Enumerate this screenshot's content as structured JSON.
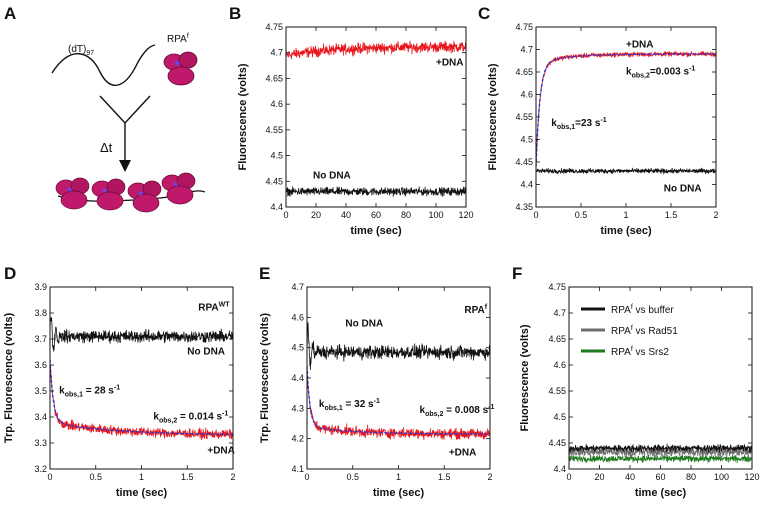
{
  "figure": {
    "colors": {
      "red": "#e8151b",
      "black": "#111111",
      "blue": "#2b3bd6",
      "gray": "#6e6e6e",
      "green": "#1e7a1e",
      "magenta": "#c0186a",
      "star": "#5a4cff"
    }
  },
  "schematic": {
    "letter": "A",
    "dt_label": "(dT)",
    "dt_sub": "97",
    "rpa_label": "RPA",
    "rpa_sup": "f",
    "delta_t": "Δt"
  },
  "chart_data": [
    {
      "id": "B",
      "letter": "B",
      "type": "line",
      "xlabel": "time (sec)",
      "ylabel": "Fluorescence (volts)",
      "xlim": [
        0,
        120
      ],
      "ylim": [
        4.4,
        4.75
      ],
      "xticks": [
        0,
        20,
        40,
        60,
        80,
        100,
        120
      ],
      "xtick_labels": [
        "0",
        "20",
        "40",
        "60",
        "80",
        "100",
        "120"
      ],
      "yticks": [
        4.4,
        4.45,
        4.5,
        4.55,
        4.6,
        4.65,
        4.7,
        4.75
      ],
      "ytick_labels": [
        "4.4",
        "4.45",
        "4.5",
        "4.55",
        "4.6",
        "4.65",
        "4.7",
        "4.75"
      ],
      "series": [
        {
          "name": "+DNA",
          "kind": "rise",
          "start": 4.695,
          "end": 4.712,
          "k": 0.03,
          "noise": 0.008,
          "color": "#e8151b"
        },
        {
          "name": "No DNA",
          "kind": "flat",
          "start": 4.43,
          "end": 4.43,
          "k": 0,
          "noise": 0.006,
          "color": "#111111"
        }
      ],
      "labels": [
        {
          "text": "+DNA",
          "x": 100,
          "y": 4.675,
          "color": "#e8151b",
          "series": "+DNA"
        },
        {
          "text": "No DNA",
          "x": 18,
          "y": 4.455,
          "color": "#111111",
          "series": "No DNA"
        }
      ]
    },
    {
      "id": "C",
      "letter": "C",
      "type": "line",
      "xlabel": "time (sec)",
      "ylabel": "Fluorescence (volts)",
      "xlim": [
        0,
        2
      ],
      "ylim": [
        4.35,
        4.75
      ],
      "xticks": [
        0,
        0.5,
        1,
        1.5,
        2
      ],
      "xtick_labels": [
        "0",
        "0.5",
        "1",
        "1.5",
        "2"
      ],
      "yticks": [
        4.35,
        4.4,
        4.45,
        4.5,
        4.55,
        4.6,
        4.65,
        4.7,
        4.75
      ],
      "ytick_labels": [
        "4.35",
        "4.4",
        "4.45",
        "4.5",
        "4.55",
        "4.6",
        "4.65",
        "4.7",
        "4.75"
      ],
      "series": [
        {
          "name": "+DNA",
          "kind": "biexp",
          "start": 4.44,
          "end": 4.69,
          "amp1": 0.23,
          "k1": 23,
          "k2": 3,
          "noise": 0.004,
          "color": "#e8151b"
        },
        {
          "name": "fit",
          "kind": "biexp_fit",
          "start": 4.44,
          "end": 4.69,
          "amp1": 0.23,
          "k1": 23,
          "k2": 3,
          "noise": 0,
          "color": "#2b3bd6",
          "dashed": true
        },
        {
          "name": "No DNA",
          "kind": "flat",
          "start": 4.43,
          "end": 4.43,
          "k": 0,
          "noise": 0.004,
          "color": "#111111"
        }
      ],
      "labels": [
        {
          "text": "+DNA",
          "x": 1.0,
          "y": 4.705,
          "color": "#e8151b",
          "series": "+DNA"
        },
        {
          "text": "k",
          "sub": "obs,2",
          "rest": "=0.003 s",
          "sup": "-1",
          "x": 1.0,
          "y": 4.645,
          "color": "#111111"
        },
        {
          "text": "k",
          "sub": "obs,1",
          "rest": "=23 s",
          "sup": "-1",
          "x": 0.17,
          "y": 4.53,
          "color": "#111111"
        },
        {
          "text": "No DNA",
          "x": 1.42,
          "y": 4.385,
          "color": "#111111",
          "series": "No DNA"
        }
      ]
    },
    {
      "id": "D",
      "letter": "D",
      "type": "line",
      "xlabel": "time (sec)",
      "ylabel": "Trp. Fluorescence (volts)",
      "xlim": [
        0,
        2
      ],
      "ylim": [
        3.2,
        3.9
      ],
      "xticks": [
        0,
        0.5,
        1,
        1.5,
        2
      ],
      "xtick_labels": [
        "0",
        "0.5",
        "1",
        "1.5",
        "2"
      ],
      "yticks": [
        3.2,
        3.3,
        3.4,
        3.5,
        3.6,
        3.7,
        3.8,
        3.9
      ],
      "ytick_labels": [
        "3.2",
        "3.3",
        "3.4",
        "3.5",
        "3.6",
        "3.7",
        "3.8",
        "3.9"
      ],
      "series": [
        {
          "name": "No DNA",
          "kind": "spike",
          "start": 3.71,
          "end": 3.71,
          "spike": 0.11,
          "noise": 0.018,
          "color": "#111111"
        },
        {
          "name": "+DNA",
          "kind": "decay",
          "start": 3.62,
          "end": 3.33,
          "amp1": 0.24,
          "k1": 28,
          "k2": 1.4,
          "noise": 0.014,
          "color": "#e8151b"
        },
        {
          "name": "fit",
          "kind": "decay_fit",
          "start": 3.62,
          "end": 3.33,
          "amp1": 0.24,
          "k1": 28,
          "k2": 1.4,
          "noise": 0,
          "color": "#2b3bd6",
          "dashed": true
        }
      ],
      "labels": [
        {
          "text": "RPA",
          "sup": "WT",
          "x": 1.62,
          "y": 3.81,
          "color": "#111111"
        },
        {
          "text": "No DNA",
          "x": 1.5,
          "y": 3.64,
          "color": "#111111",
          "series": "No DNA"
        },
        {
          "text": "k",
          "sub": "obs,1",
          "rest": " = 28 s",
          "sup": "-1",
          "x": 0.1,
          "y": 3.49,
          "color": "#111111"
        },
        {
          "text": "k",
          "sub": "obs,2",
          "rest": " = 0.014 s",
          "sup": "-1",
          "x": 1.13,
          "y": 3.39,
          "color": "#111111"
        },
        {
          "text": "+DNA",
          "x": 1.72,
          "y": 3.26,
          "color": "#e8151b",
          "series": "+DNA"
        }
      ]
    },
    {
      "id": "E",
      "letter": "E",
      "type": "line",
      "xlabel": "time (sec)",
      "ylabel": "Trp. Fluorescence (volts)",
      "xlim": [
        0,
        2
      ],
      "ylim": [
        4.1,
        4.7
      ],
      "xticks": [
        0,
        0.5,
        1,
        1.5,
        2
      ],
      "xtick_labels": [
        "0",
        "0.5",
        "1",
        "1.5",
        "2"
      ],
      "yticks": [
        4.1,
        4.2,
        4.3,
        4.4,
        4.5,
        4.6,
        4.7
      ],
      "ytick_labels": [
        "4.1",
        "4.2",
        "4.3",
        "4.4",
        "4.5",
        "4.6",
        "4.7"
      ],
      "series": [
        {
          "name": "No DNA",
          "kind": "spike",
          "start": 4.485,
          "end": 4.485,
          "spike": 0.1,
          "noise": 0.017,
          "color": "#111111"
        },
        {
          "name": "+DNA",
          "kind": "decay",
          "start": 4.44,
          "end": 4.215,
          "amp1": 0.2,
          "k1": 32,
          "k2": 2,
          "noise": 0.013,
          "color": "#e8151b"
        },
        {
          "name": "fit",
          "kind": "decay_fit",
          "start": 4.44,
          "end": 4.215,
          "amp1": 0.2,
          "k1": 32,
          "k2": 2,
          "noise": 0,
          "color": "#2b3bd6",
          "dashed": true
        }
      ],
      "labels": [
        {
          "text": "RPA",
          "sup": "f",
          "x": 1.72,
          "y": 4.615,
          "color": "#111111"
        },
        {
          "text": "No DNA",
          "x": 0.42,
          "y": 4.57,
          "color": "#111111",
          "series": "No DNA"
        },
        {
          "text": "k",
          "sub": "obs,1",
          "rest": " = 32 s",
          "sup": "-1",
          "x": 0.13,
          "y": 4.305,
          "color": "#111111"
        },
        {
          "text": "k",
          "sub": "obs,2",
          "rest": " = 0.008 s",
          "sup": "-1",
          "x": 1.23,
          "y": 4.285,
          "color": "#111111"
        },
        {
          "text": "+DNA",
          "x": 1.55,
          "y": 4.145,
          "color": "#e8151b",
          "series": "+DNA"
        }
      ]
    },
    {
      "id": "F",
      "letter": "F",
      "type": "line",
      "xlabel": "time (sec)",
      "ylabel": "Fluorescence (volts)",
      "xlim": [
        0,
        120
      ],
      "ylim": [
        4.4,
        4.75
      ],
      "xticks": [
        0,
        20,
        40,
        60,
        80,
        100,
        120
      ],
      "xtick_labels": [
        "0",
        "20",
        "40",
        "60",
        "80",
        "100",
        "120"
      ],
      "yticks": [
        4.4,
        4.45,
        4.5,
        4.55,
        4.6,
        4.65,
        4.7,
        4.75
      ],
      "ytick_labels": [
        "4.4",
        "4.45",
        "4.5",
        "4.55",
        "4.6",
        "4.65",
        "4.7",
        "4.75"
      ],
      "series": [
        {
          "name": "RPA f vs Srs2",
          "kind": "flat",
          "start": 4.42,
          "end": 4.42,
          "k": 0,
          "noise": 0.005,
          "color": "#1e7a1e"
        },
        {
          "name": "RPA f vs Rad51",
          "kind": "flat",
          "start": 4.433,
          "end": 4.433,
          "k": 0,
          "noise": 0.007,
          "color": "#6e6e6e"
        },
        {
          "name": "RPA f vs buffer",
          "kind": "flat",
          "start": 4.44,
          "end": 4.44,
          "k": 0,
          "noise": 0.005,
          "color": "#111111"
        }
      ],
      "legend": [
        {
          "prefix": "RPA",
          "sup": "f",
          "suffix": " vs buffer",
          "color": "#111111"
        },
        {
          "prefix": "RPA",
          "sup": "f",
          "suffix": " vs Rad51",
          "color": "#6e6e6e"
        },
        {
          "prefix": "RPA",
          "sup": "f",
          "suffix": " vs Srs2",
          "color": "#1e7a1e"
        }
      ]
    }
  ]
}
